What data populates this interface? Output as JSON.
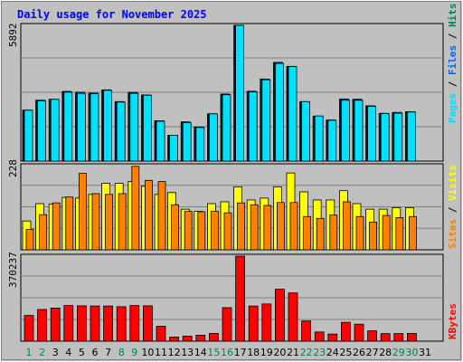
{
  "chart_data": {
    "title": "Daily usage for November 2025",
    "days": [
      "1",
      "2",
      "3",
      "4",
      "5",
      "6",
      "7",
      "8",
      "9",
      "10",
      "11",
      "12",
      "13",
      "14",
      "15",
      "16",
      "17",
      "18",
      "19",
      "20",
      "21",
      "22",
      "23",
      "24",
      "25",
      "26",
      "27",
      "28",
      "29",
      "30",
      "31"
    ],
    "weekend_days": [
      "1",
      "2",
      "8",
      "9",
      "15",
      "16",
      "22",
      "23",
      "29",
      "30"
    ],
    "panels": [
      {
        "type": "bar",
        "max_label": "5892",
        "ymax": 5892,
        "series": [
          {
            "name": "Hits",
            "color": "#00805c",
            "values": [
              2210,
              2640,
              2680,
              3020,
              2990,
              2950,
              3090,
              2580,
              2980,
              2870,
              1750,
              1120,
              1700,
              1480,
              2050,
              2910,
              5890,
              3030,
              3560,
              4280,
              4110,
              2580,
              1950,
              1780,
              2690,
              2680,
              2400,
              2070,
              2110,
              2140,
              0
            ]
          },
          {
            "name": "Files",
            "color": "#0066f0",
            "values": [
              2210,
              2640,
              2680,
              3020,
              2990,
              2950,
              3090,
              2580,
              2980,
              2870,
              1750,
              1120,
              1700,
              1480,
              2050,
              2910,
              5890,
              3030,
              3560,
              4280,
              4110,
              2580,
              1950,
              1780,
              2690,
              2680,
              2400,
              2070,
              2110,
              2140,
              0
            ]
          },
          {
            "name": "Pages",
            "color": "#00e0ff",
            "values": [
              2210,
              2620,
              2680,
              2990,
              2940,
              2920,
              3070,
              2560,
              2940,
              2860,
              1730,
              1120,
              1670,
              1460,
              2050,
              2880,
              5890,
              3000,
              3530,
              4240,
              4100,
              2580,
              1960,
              1770,
              2640,
              2640,
              2380,
              2060,
              2080,
              2130,
              0
            ]
          }
        ]
      },
      {
        "type": "bar",
        "max_label": "228",
        "ymax": 228,
        "series": [
          {
            "name": "Visits",
            "color": "#ffff00",
            "values": [
              78,
              125,
              124,
              142,
              140,
              150,
              180,
              180,
              185,
              172,
              150,
              155,
              110,
              104,
              125,
              130,
              170,
              135,
              140,
              170,
              208,
              157,
              135,
              135,
              160,
              125,
              110,
              110,
              114,
              114,
              0
            ]
          },
          {
            "name": "Sites",
            "color": "#ff8000",
            "values": [
              55,
              95,
              127,
              143,
              207,
              152,
              150,
              152,
              226,
              188,
              185,
              122,
              104,
              103,
              104,
              100,
              127,
              122,
              120,
              128,
              128,
              90,
              85,
              94,
              130,
              90,
              75,
              93,
              87,
              90,
              0
            ]
          }
        ]
      },
      {
        "type": "bar",
        "max_label": "370237",
        "ymax": 370237,
        "series": [
          {
            "name": "KBytes",
            "color": "#ff0000",
            "values": [
              112000,
              138000,
              144000,
              155000,
              154000,
              153000,
              153000,
              150000,
              155000,
              154000,
              65000,
              18000,
              22000,
              26000,
              34000,
              146000,
              370000,
              153000,
              162000,
              226000,
              210000,
              88000,
              40000,
              31000,
              82000,
              74000,
              45000,
              33000,
              33000,
              34000,
              0
            ]
          }
        ]
      }
    ],
    "colors": {
      "background": "#c0c0c0",
      "title_text": "#0000ff",
      "day_weekday": "#000000",
      "day_weekend": "#00805c",
      "separator": "#000000"
    }
  }
}
